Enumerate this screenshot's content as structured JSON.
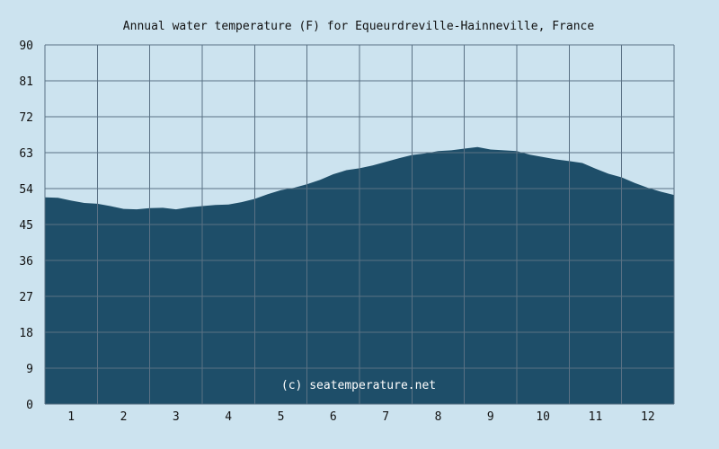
{
  "chart_data": {
    "type": "area",
    "title": "Annual water temperature (F) for Equeurdreville-Hainneville, France",
    "xlabel": "",
    "ylabel": "",
    "ylim": [
      0,
      90
    ],
    "y_ticks": [
      "0",
      "9",
      "18",
      "27",
      "36",
      "45",
      "54",
      "63",
      "72",
      "81",
      "90"
    ],
    "xlim": [
      0.5,
      12.5
    ],
    "x_ticks": [
      "1",
      "2",
      "3",
      "4",
      "5",
      "6",
      "7",
      "8",
      "9",
      "10",
      "11",
      "12"
    ],
    "grid": true,
    "legend": "none",
    "watermark": "(c) seatemperature.net",
    "x": [
      0.5,
      0.75,
      1.0,
      1.25,
      1.5,
      1.75,
      2.0,
      2.25,
      2.5,
      2.75,
      3.0,
      3.25,
      3.5,
      3.75,
      4.0,
      4.25,
      4.5,
      4.75,
      5.0,
      5.25,
      5.5,
      5.75,
      6.0,
      6.25,
      6.5,
      6.75,
      7.0,
      7.25,
      7.5,
      7.75,
      8.0,
      8.25,
      8.5,
      8.75,
      9.0,
      9.25,
      9.5,
      9.75,
      10.0,
      10.25,
      10.5,
      10.75,
      11.0,
      11.25,
      11.5,
      11.75,
      12.0,
      12.25,
      12.5
    ],
    "values": [
      51.8,
      51.7,
      51.0,
      50.4,
      50.2,
      49.6,
      48.9,
      48.8,
      49.1,
      49.2,
      48.8,
      49.3,
      49.6,
      49.9,
      50.0,
      50.6,
      51.4,
      52.6,
      53.6,
      54.2,
      55.1,
      56.2,
      57.6,
      58.6,
      59.1,
      59.8,
      60.7,
      61.6,
      62.4,
      62.8,
      63.4,
      63.6,
      64.0,
      64.4,
      63.8,
      63.6,
      63.4,
      62.5,
      61.9,
      61.3,
      60.9,
      60.4,
      59.0,
      57.7,
      56.8,
      55.4,
      54.2,
      53.2,
      52.4
    ],
    "colors": {
      "background": "#cce3ef",
      "area": "#1e4e69",
      "grid": "#5a7184",
      "text": "#111111",
      "watermark": "#ffffff"
    }
  }
}
